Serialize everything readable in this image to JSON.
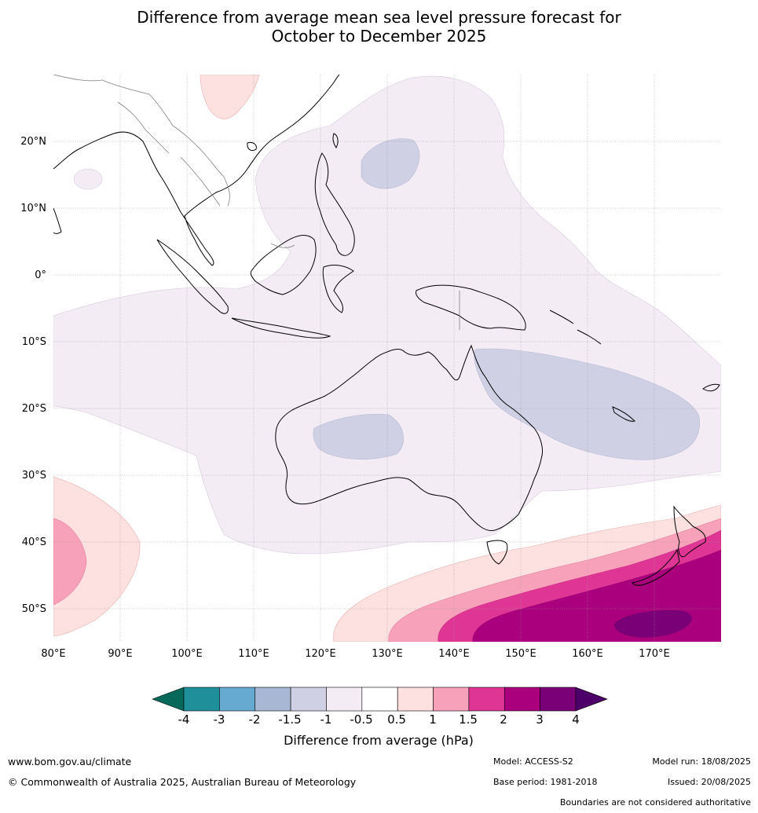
{
  "title": {
    "line1": "Difference from average mean sea level pressure forecast for",
    "line2": "October to December 2025"
  },
  "map": {
    "lon_ticks": [
      "80°E",
      "90°E",
      "100°E",
      "110°E",
      "120°E",
      "130°E",
      "140°E",
      "150°E",
      "160°E",
      "170°E"
    ],
    "lat_ticks": [
      "20°N",
      "10°N",
      "0°",
      "10°S",
      "20°S",
      "30°S",
      "40°S",
      "50°S"
    ],
    "extent": {
      "lon": [
        80,
        180
      ],
      "lat": [
        -55,
        30
      ]
    },
    "grid": true,
    "coastline_color": "#000000",
    "boundary_color": "#808080"
  },
  "colorbar": {
    "title": "Difference from average (hPa)",
    "tick_labels": [
      "-4",
      "-3",
      "-2",
      "-1.5",
      "-1",
      "-0.5",
      "0.5",
      "1",
      "1.5",
      "2",
      "3",
      "4"
    ],
    "colors": {
      "lt_-4": "#06695a",
      "-4_-3": "#1f8f99",
      "-3_-2": "#66a9d1",
      "-2_-1.5": "#a8b7d3",
      "-1.5_-1": "#cfd0e4",
      "-1_-0.5": "#f3ecf5",
      "-0.5_0.5": "#ffffff",
      "0.5_1": "#fde0e0",
      "1_1.5": "#f8a1bb",
      "1.5_2": "#df3595",
      "2_3": "#ab007e",
      "3_4": "#7a0077",
      "gt_4": "#4d006a"
    }
  },
  "footer": {
    "website": "www.bom.gov.au/climate",
    "copyright": "© Commonwealth of Australia 2025, Australian Bureau of Meteorology",
    "model": "Model: ACCESS-S2",
    "base_period": "Base period: 1981-2018",
    "model_run": "Model run: 18/08/2025",
    "issued": "Issued: 20/08/2025",
    "disclaimer": "Boundaries are not considered authoritative"
  }
}
